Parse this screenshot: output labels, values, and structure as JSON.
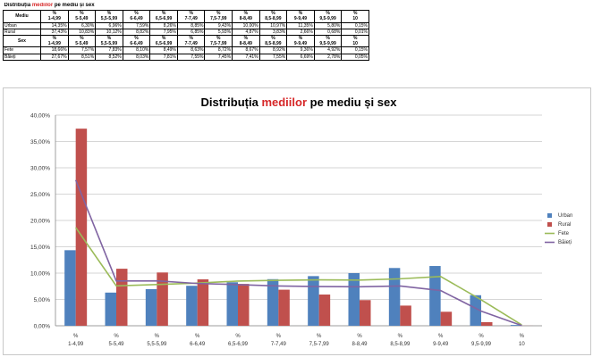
{
  "table": {
    "caption_prefix": "Distribuția ",
    "caption_highlight": "mediilor",
    "caption_suffix": " pe mediu și sex",
    "header_pct": "%",
    "group_header_1": "Mediu",
    "group_header_2": "Sex",
    "columns": [
      "1-4,99",
      "5-5,49",
      "5,5-5,99",
      "6-6,49",
      "6,5-6,99",
      "7-7,49",
      "7,5-7,99",
      "8-8,49",
      "8,5-8,99",
      "9-9,49",
      "9,5-9,99",
      "10"
    ],
    "rows_mediu": [
      {
        "label": "Urban",
        "values": [
          "14,35%",
          "6,30%",
          "6,96%",
          "7,59%",
          "8,26%",
          "8,85%",
          "9,43%",
          "10,00%",
          "10,97%",
          "11,35%",
          "5,80%",
          "0,15%"
        ]
      },
      {
        "label": "Rural",
        "values": [
          "37,43%",
          "10,83%",
          "10,12%",
          "8,82%",
          "7,95%",
          "6,85%",
          "5,93%",
          "4,87%",
          "3,83%",
          "2,66%",
          "0,68%",
          "0,01%"
        ]
      }
    ],
    "rows_sex": [
      {
        "label": "Fete",
        "values": [
          "18,66%",
          "7,57%",
          "7,83%",
          "8,10%",
          "8,49%",
          "8,63%",
          "8,72%",
          "8,67%",
          "8,92%",
          "9,36%",
          "4,92%",
          "0,15%"
        ]
      },
      {
        "label": "Băieți",
        "values": [
          "27,67%",
          "8,51%",
          "8,52%",
          "8,03%",
          "7,81%",
          "7,55%",
          "7,45%",
          "7,41%",
          "7,55%",
          "6,69%",
          "2,78%",
          "0,05%"
        ]
      }
    ]
  },
  "chart_data": {
    "type": "bar",
    "title_prefix": "Distribuția ",
    "title_highlight": "mediilor",
    "title_suffix": " pe mediu și sex",
    "category_prefix": "%",
    "categories": [
      "1-4,99",
      "5-5,49",
      "5,5-5,99",
      "6-6,49",
      "6,5-6,99",
      "7-7,49",
      "7,5-7,99",
      "8-8,49",
      "8,5-8,99",
      "9-9,49",
      "9,5-9,99",
      "10"
    ],
    "ylim": [
      0,
      40
    ],
    "yticks": [
      0,
      5,
      10,
      15,
      20,
      25,
      30,
      35,
      40
    ],
    "ytick_labels": [
      "0,00%",
      "5,00%",
      "10,00%",
      "15,00%",
      "20,00%",
      "25,00%",
      "30,00%",
      "35,00%",
      "40,00%"
    ],
    "grid": true,
    "legend_position": "right",
    "series": [
      {
        "name": "Urban",
        "kind": "bar",
        "color": "#4f81bd",
        "values": [
          14.35,
          6.3,
          6.96,
          7.59,
          8.26,
          8.85,
          9.43,
          10.0,
          10.97,
          11.35,
          5.8,
          0.15
        ]
      },
      {
        "name": "Rural",
        "kind": "bar",
        "color": "#c0504d",
        "values": [
          37.43,
          10.83,
          10.12,
          8.82,
          7.95,
          6.85,
          5.93,
          4.87,
          3.83,
          2.66,
          0.68,
          0.01
        ]
      },
      {
        "name": "Fete",
        "kind": "line",
        "color": "#9bbb59",
        "values": [
          18.66,
          7.57,
          7.83,
          8.1,
          8.49,
          8.63,
          8.72,
          8.67,
          8.92,
          9.36,
          4.92,
          0.15
        ]
      },
      {
        "name": "Băieți",
        "kind": "line",
        "color": "#8064a2",
        "values": [
          27.67,
          8.51,
          8.52,
          8.03,
          7.81,
          7.55,
          7.45,
          7.41,
          7.55,
          6.69,
          2.78,
          0.05
        ]
      }
    ]
  }
}
